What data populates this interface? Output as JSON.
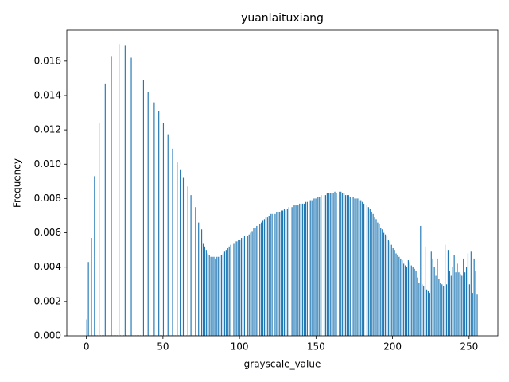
{
  "chart_data": {
    "type": "histogram",
    "title": "yuanlaituxiang",
    "x_label": "grayscale_value",
    "y_label": "Frequency",
    "color": "#1f77b4",
    "bins": [
      0,
      1,
      2,
      3,
      4,
      5,
      6,
      7,
      8,
      9,
      10,
      11,
      12,
      13,
      14,
      15,
      16,
      17,
      18,
      19,
      20,
      21,
      22,
      23,
      24,
      25,
      26,
      27,
      28,
      29,
      30,
      31,
      32,
      33,
      34,
      35,
      36,
      37,
      38,
      39,
      40,
      41,
      42,
      43,
      44,
      45,
      46,
      47,
      48,
      49,
      50,
      51,
      52,
      53,
      54,
      55,
      56,
      57,
      58,
      59,
      60,
      61,
      62,
      63,
      64,
      65,
      66,
      67,
      68,
      69,
      70,
      71,
      72,
      73,
      74,
      75,
      76,
      77,
      78,
      79,
      80,
      81,
      82,
      83,
      84,
      85,
      86,
      87,
      88,
      89,
      90,
      91,
      92,
      93,
      94,
      95,
      96,
      97,
      98,
      99,
      100,
      101,
      102,
      103,
      104,
      105,
      106,
      107,
      108,
      109,
      110,
      111,
      112,
      113,
      114,
      115,
      116,
      117,
      118,
      119,
      120,
      121,
      122,
      123,
      124,
      125,
      126,
      127,
      128,
      129,
      130,
      131,
      132,
      133,
      134,
      135,
      136,
      137,
      138,
      139,
      140,
      141,
      142,
      143,
      144,
      145,
      146,
      147,
      148,
      149,
      150,
      151,
      152,
      153,
      154,
      155,
      156,
      157,
      158,
      159,
      160,
      161,
      162,
      163,
      164,
      165,
      166,
      167,
      168,
      169,
      170,
      171,
      172,
      173,
      174,
      175,
      176,
      177,
      178,
      179,
      180,
      181,
      182,
      183,
      184,
      185,
      186,
      187,
      188,
      189,
      190,
      191,
      192,
      193,
      194,
      195,
      196,
      197,
      198,
      199,
      200,
      201,
      202,
      203,
      204,
      205,
      206,
      207,
      208,
      209,
      210,
      211,
      212,
      213,
      214,
      215,
      216,
      217,
      218,
      219,
      220,
      221,
      222,
      223,
      224,
      225,
      226,
      227,
      228,
      229,
      230,
      231,
      232,
      233,
      234,
      235,
      236,
      237,
      238,
      239,
      240,
      241,
      242,
      243,
      244,
      245,
      246,
      247,
      248,
      249,
      250,
      251,
      252,
      253,
      254,
      255,
      256
    ],
    "counts": [
      0.00095,
      0.0043,
      3e-05,
      0.0057,
      3e-05,
      0.0093,
      3e-05,
      3e-05,
      0.0124,
      3e-05,
      3e-05,
      3e-05,
      0.0147,
      3e-05,
      3e-05,
      3e-05,
      0.0163,
      3e-05,
      3e-05,
      3e-05,
      3e-05,
      0.017,
      3e-05,
      3e-05,
      3e-05,
      0.0169,
      3e-05,
      3e-05,
      3e-05,
      0.0162,
      3e-05,
      3e-05,
      3e-05,
      3e-05,
      3e-05,
      3e-05,
      3e-05,
      0.0149,
      3e-05,
      3e-05,
      0.0142,
      3e-05,
      3e-05,
      3e-05,
      0.0136,
      3e-05,
      3e-05,
      0.0131,
      3e-05,
      3e-05,
      0.0124,
      3e-05,
      3e-05,
      0.0117,
      3e-05,
      3e-05,
      0.0109,
      3e-05,
      3e-05,
      0.0101,
      3e-05,
      0.0097,
      3e-05,
      0.0092,
      3e-05,
      3e-05,
      0.0087,
      3e-05,
      0.0082,
      3e-05,
      3e-05,
      0.0075,
      3e-05,
      0.0066,
      3e-05,
      0.0062,
      0.0054,
      0.0052,
      0.005,
      0.0048,
      0.0047,
      0.0046,
      0.0046,
      0.0046,
      0.0045,
      0.0046,
      0.0046,
      0.0047,
      0.0047,
      0.0048,
      0.0049,
      0.005,
      0.0051,
      0.0052,
      0.0053,
      0,
      0.0054,
      0.0055,
      0.0055,
      0.0056,
      0.0056,
      0.0057,
      0.0057,
      0.0058,
      0,
      0.0058,
      0.0059,
      0.006,
      0.0061,
      0.0063,
      0.0063,
      0.0064,
      0,
      0.0065,
      0.0066,
      0.0067,
      0.0068,
      0.0069,
      0.0069,
      0.007,
      0.0071,
      0.0071,
      0,
      0.0071,
      0.0072,
      0.0072,
      0.0072,
      0.0073,
      0.0073,
      0.0074,
      0.0073,
      0.0074,
      0.0075,
      0,
      0.0075,
      0.0076,
      0.0076,
      0.0076,
      0.0076,
      0.0077,
      0.0077,
      0.0077,
      0.0077,
      0.0078,
      0.0078,
      0,
      0.0079,
      0.0079,
      0.008,
      0.008,
      0.008,
      0.0081,
      0.0081,
      0.0082,
      0,
      0.0082,
      0.0082,
      0.0083,
      0.0083,
      0.0083,
      0.0083,
      0.0083,
      0.0084,
      0.0083,
      0,
      0.0084,
      0.0084,
      0.0083,
      0.0083,
      0.0082,
      0.0082,
      0.0082,
      0.0081,
      0,
      0.0081,
      0.008,
      0.008,
      0.008,
      0.0079,
      0.0079,
      0.0078,
      0.0077,
      0,
      0.0076,
      0.0075,
      0.0074,
      0.0072,
      0.0071,
      0.0069,
      0.0068,
      0.0066,
      0.0065,
      0.0063,
      0.0062,
      0.006,
      0.0059,
      0.0058,
      0.0056,
      0.0055,
      0.0053,
      0.0051,
      0.005,
      0.0048,
      0.0047,
      0.0046,
      0.0045,
      0.0044,
      0.0042,
      0.0041,
      0.004,
      0.0044,
      0.0043,
      0.0041,
      0.004,
      0.0039,
      0.0038,
      0.0034,
      0.0031,
      0.0064,
      0.003,
      0.0029,
      0.0052,
      0.0027,
      0.0026,
      0.0025,
      0.0049,
      0.0045,
      0.004,
      0.0035,
      0.0045,
      0.0033,
      0.0031,
      0.003,
      0.0029,
      0.0053,
      0.003,
      0.005,
      0.0038,
      0.0035,
      0.004,
      0.0047,
      0.0037,
      0.0042,
      0.0037,
      0.0036,
      0.0035,
      0.0045,
      0.0037,
      0.004,
      0.0048,
      0.003,
      0.0049,
      0.0025,
      0.0045,
      0.0038,
      0.0024
    ],
    "xlim": [
      -12.8,
      268.8
    ],
    "ylim": [
      0,
      0.0178
    ],
    "xticks": [
      0,
      50,
      100,
      150,
      200,
      250
    ],
    "yticks": [
      {
        "value": 0,
        "label": "0.000"
      },
      {
        "value": 0.002,
        "label": "0.002"
      },
      {
        "value": 0.004,
        "label": "0.004"
      },
      {
        "value": 0.006,
        "label": "0.006"
      },
      {
        "value": 0.008,
        "label": "0.008"
      },
      {
        "value": 0.01,
        "label": "0.010"
      },
      {
        "value": 0.012,
        "label": "0.012"
      },
      {
        "value": 0.014,
        "label": "0.014"
      },
      {
        "value": 0.016,
        "label": "0.016"
      }
    ]
  }
}
